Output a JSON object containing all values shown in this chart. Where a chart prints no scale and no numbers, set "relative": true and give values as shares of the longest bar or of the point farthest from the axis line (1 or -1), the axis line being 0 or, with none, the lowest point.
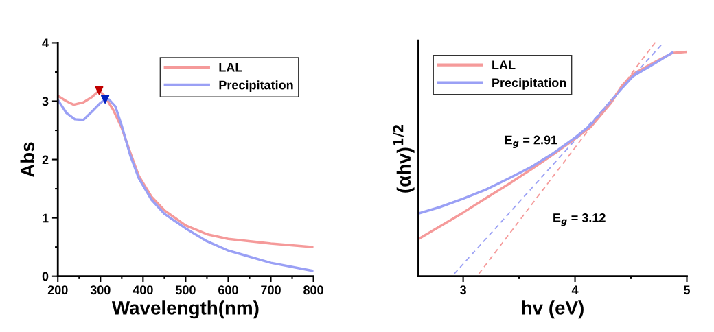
{
  "chart_data": [
    {
      "type": "line",
      "xlabel": "Wavelength(nm)",
      "ylabel": "Abs",
      "legend": "top right",
      "grid": false,
      "xlim": [
        200,
        800
      ],
      "xticks": [
        200,
        {
          "value": 250,
          "label": null
        },
        300,
        {
          "value": 350,
          "label": null
        },
        400,
        {
          "value": 450,
          "label": null
        },
        500,
        {
          "value": 550,
          "label": null
        },
        600,
        {
          "value": 650,
          "label": null
        },
        700,
        {
          "value": 750,
          "label": null
        },
        800
      ],
      "ylim": [
        0,
        4
      ],
      "yticks": [
        0,
        {
          "value": 0.5,
          "label": null
        },
        1,
        {
          "value": 1.5,
          "label": null
        },
        2,
        {
          "value": 2.5,
          "label": null
        },
        3,
        {
          "value": 3.5,
          "label": null
        },
        4
      ],
      "series": [
        {
          "name": "LAL",
          "color": "#f59a9a",
          "x": [
            200,
            220,
            237,
            260,
            280,
            297,
            310,
            330,
            350,
            370,
            390,
            420,
            450,
            500,
            550,
            600,
            700,
            800
          ],
          "values": [
            3.09,
            3.0,
            2.94,
            2.98,
            3.07,
            3.18,
            3.09,
            2.85,
            2.54,
            2.12,
            1.72,
            1.36,
            1.13,
            0.87,
            0.72,
            0.64,
            0.56,
            0.5
          ]
        },
        {
          "name": "Precipitation",
          "color": "#9aa0f5",
          "x": [
            200,
            220,
            240,
            260,
            280,
            300,
            311,
            320,
            335,
            350,
            370,
            390,
            420,
            450,
            500,
            550,
            600,
            700,
            800
          ],
          "values": [
            3.02,
            2.8,
            2.69,
            2.68,
            2.82,
            2.97,
            3.03,
            3.03,
            2.91,
            2.58,
            2.07,
            1.68,
            1.31,
            1.07,
            0.82,
            0.6,
            0.44,
            0.23,
            0.09
          ]
        },
        {
          "type": "scatter",
          "marker": "triangle",
          "color": "#c00000",
          "x": [
            297
          ],
          "values": [
            3.18
          ]
        },
        {
          "type": "scatter",
          "marker": "triangle",
          "color": "#0020c0",
          "x": [
            311
          ],
          "values": [
            3.03
          ]
        }
      ]
    },
    {
      "type": "line",
      "xlabel": "hv (eV)",
      "ylabel": "(αhv)$^{1/2}$",
      "legend": "top left",
      "grid": false,
      "relative": true,
      "tick_labels": "x",
      "xlim": [
        2.6,
        5.0
      ],
      "xticks": [
        3,
        {
          "value": 3.5,
          "label": null
        },
        4,
        {
          "value": 4.5,
          "label": null
        },
        5
      ],
      "annotations": [
        "E$_{g}$ = 2.91",
        "E$_{g}$ = 3.12"
      ],
      "series": [
        {
          "name": "LAL",
          "color": "#f59a9a",
          "x": [
            2.6,
            2.79,
            3.0,
            3.2,
            3.4,
            3.61,
            3.81,
            4.0,
            4.14,
            4.32,
            4.42,
            4.52,
            4.73,
            4.87,
            5.0
          ],
          "values": [
            0.158,
            0.211,
            0.27,
            0.33,
            0.389,
            0.454,
            0.518,
            0.583,
            0.633,
            0.734,
            0.808,
            0.858,
            0.913,
            0.947,
            0.952
          ]
        },
        {
          "name": "Precipitation",
          "color": "#9aa0f5",
          "x": [
            2.6,
            2.79,
            3.0,
            3.2,
            3.4,
            3.61,
            3.81,
            4.0,
            4.14,
            4.32,
            4.42,
            4.52,
            4.73,
            4.87
          ],
          "values": [
            0.266,
            0.293,
            0.329,
            0.367,
            0.413,
            0.464,
            0.523,
            0.588,
            0.642,
            0.743,
            0.798,
            0.849,
            0.908,
            0.949
          ]
        },
        {
          "type": "line",
          "line_style": "dashed",
          "color": "#f59a9a",
          "x": [
            3.14,
            4.73
          ],
          "values": [
            0.01,
            1.0
          ]
        },
        {
          "type": "line",
          "line_style": "dashed",
          "color": "#9aa0f5",
          "x": [
            2.92,
            4.78
          ],
          "values": [
            0.01,
            0.986
          ]
        }
      ]
    }
  ]
}
